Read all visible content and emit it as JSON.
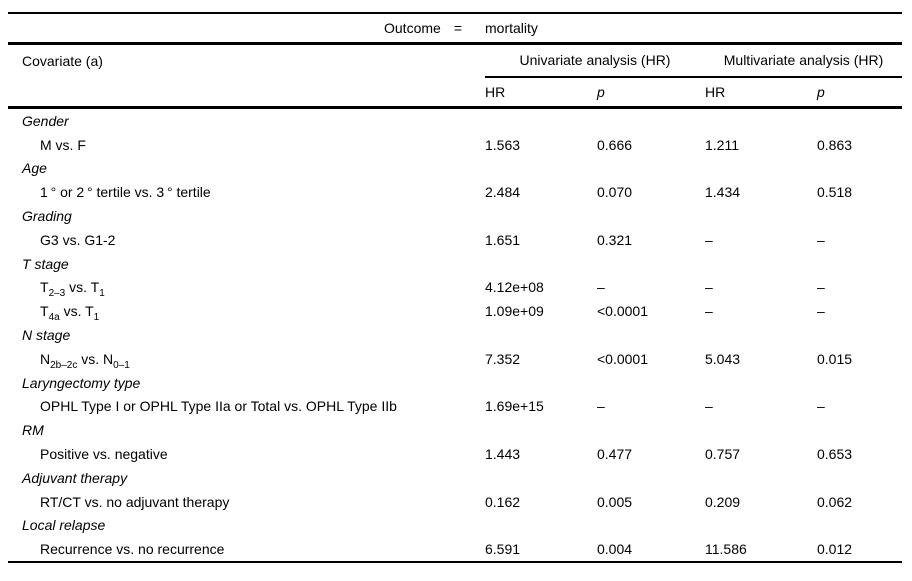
{
  "outcome_bar": {
    "label": "Outcome",
    "equals": "=",
    "value": "mortality"
  },
  "header": {
    "covariate": "Covariate (a)",
    "groups": [
      {
        "label": "Univariate analysis (HR)"
      },
      {
        "label": "Multivariate analysis (HR)"
      }
    ],
    "subheaders": [
      "HR",
      "p",
      "HR",
      "p"
    ]
  },
  "table": {
    "rows": [
      {
        "type": "category",
        "label": "Gender"
      },
      {
        "type": "data",
        "label": "M vs. F",
        "values": [
          "1.563",
          "0.666",
          "1.211",
          "0.863"
        ]
      },
      {
        "type": "category",
        "label": "Age"
      },
      {
        "type": "data",
        "label": "1 ° or 2 ° tertile vs. 3 ° tertile",
        "values": [
          "2.484",
          "0.070",
          "1.434",
          "0.518"
        ]
      },
      {
        "type": "category",
        "label": "Grading"
      },
      {
        "type": "data",
        "label": "G3 vs. G1-2",
        "values": [
          "1.651",
          "0.321",
          "–",
          "–"
        ]
      },
      {
        "type": "category",
        "label": "T stage"
      },
      {
        "type": "data",
        "label": "T~2–3~ vs. T~1~",
        "values": [
          "4.12e+08",
          "–",
          "–",
          "–"
        ]
      },
      {
        "type": "data",
        "label": "T~4a~ vs. T~1~",
        "values": [
          "1.09e+09",
          "<0.0001",
          "–",
          "–"
        ]
      },
      {
        "type": "category",
        "label": "N stage"
      },
      {
        "type": "data",
        "label": "N~2b–2c~ vs. N~0–1~",
        "values": [
          "7.352",
          "<0.0001",
          "5.043",
          "0.015"
        ]
      },
      {
        "type": "category",
        "label": "Laryngectomy type"
      },
      {
        "type": "data",
        "label": "OPHL Type I or OPHL Type IIa or Total vs. OPHL Type IIb",
        "values": [
          "1.69e+15",
          "–",
          "–",
          "–"
        ]
      },
      {
        "type": "category",
        "label": "RM"
      },
      {
        "type": "data",
        "label": "Positive vs. negative",
        "values": [
          "1.443",
          "0.477",
          "0.757",
          "0.653"
        ]
      },
      {
        "type": "category",
        "label": "Adjuvant therapy"
      },
      {
        "type": "data",
        "label": "RT/CT vs. no adjuvant therapy",
        "values": [
          "0.162",
          "0.005",
          "0.209",
          "0.062"
        ]
      },
      {
        "type": "category",
        "label": "Local relapse"
      },
      {
        "type": "data",
        "label": "Recurrence vs. no recurrence",
        "values": [
          "6.591",
          "0.004",
          "11.586",
          "0.012"
        ]
      }
    ]
  },
  "colors": {
    "text": "#000000",
    "line": "#000000",
    "background": "#ffffff"
  }
}
